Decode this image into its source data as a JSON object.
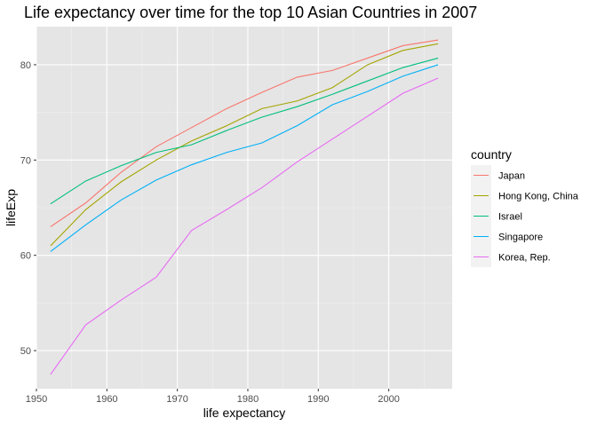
{
  "chart_data": {
    "type": "line",
    "title": "Life expectancy over time for the top 10 Asian Countries in 2007",
    "xlabel": "life expectancy",
    "ylabel": "lifeExp",
    "xlim": [
      1950,
      2009
    ],
    "ylim": [
      46,
      84
    ],
    "x_ticks": [
      1950,
      1960,
      1970,
      1980,
      1990,
      2000
    ],
    "y_ticks": [
      50,
      60,
      70,
      80
    ],
    "x_tick_labels": [
      "1950",
      "1960",
      "1970",
      "1980",
      "1990",
      "2000"
    ],
    "y_tick_labels": [
      "50",
      "60",
      "70",
      "80"
    ],
    "grid": true,
    "background": "#e5e5e5",
    "legend": {
      "title": "country",
      "position": "right"
    },
    "x": [
      1952,
      1957,
      1962,
      1967,
      1972,
      1977,
      1982,
      1987,
      1992,
      1997,
      2002,
      2007
    ],
    "series": [
      {
        "name": "Japan",
        "color": "#f8766d",
        "values": [
          63.0,
          65.5,
          68.7,
          71.4,
          73.4,
          75.4,
          77.1,
          78.7,
          79.4,
          80.7,
          82.0,
          82.6
        ]
      },
      {
        "name": "Hong Kong, China",
        "color": "#a3a500",
        "values": [
          61.0,
          64.8,
          67.7,
          70.0,
          72.0,
          73.6,
          75.4,
          76.2,
          77.6,
          80.0,
          81.5,
          82.2
        ]
      },
      {
        "name": "Israel",
        "color": "#00bf7d",
        "values": [
          65.4,
          67.8,
          69.4,
          70.8,
          71.6,
          73.1,
          74.5,
          75.6,
          76.9,
          78.3,
          79.7,
          80.7
        ]
      },
      {
        "name": "Singapore",
        "color": "#00b0f6",
        "values": [
          60.4,
          63.2,
          65.8,
          67.9,
          69.5,
          70.8,
          71.8,
          73.6,
          75.8,
          77.2,
          78.8,
          80.0
        ]
      },
      {
        "name": "Korea, Rep.",
        "color": "#e76bf3",
        "values": [
          47.5,
          52.7,
          55.3,
          57.7,
          62.6,
          64.8,
          67.1,
          69.8,
          72.2,
          74.6,
          77.0,
          78.6
        ]
      }
    ]
  }
}
